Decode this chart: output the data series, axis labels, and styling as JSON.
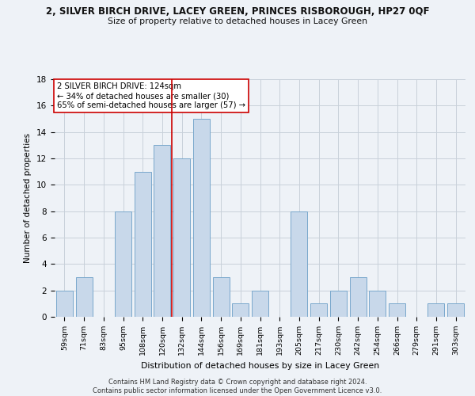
{
  "title_line1": "2, SILVER BIRCH DRIVE, LACEY GREEN, PRINCES RISBOROUGH, HP27 0QF",
  "title_line2": "Size of property relative to detached houses in Lacey Green",
  "xlabel": "Distribution of detached houses by size in Lacey Green",
  "ylabel": "Number of detached properties",
  "categories": [
    "59sqm",
    "71sqm",
    "83sqm",
    "95sqm",
    "108sqm",
    "120sqm",
    "132sqm",
    "144sqm",
    "156sqm",
    "169sqm",
    "181sqm",
    "193sqm",
    "205sqm",
    "217sqm",
    "230sqm",
    "242sqm",
    "254sqm",
    "266sqm",
    "279sqm",
    "291sqm",
    "303sqm"
  ],
  "values": [
    2,
    3,
    0,
    8,
    11,
    13,
    12,
    15,
    3,
    1,
    2,
    0,
    8,
    1,
    2,
    3,
    2,
    1,
    0,
    1,
    1
  ],
  "bar_color": "#c8d8ea",
  "bar_edge_color": "#7aa8cc",
  "vline_x_index": 5.5,
  "vline_color": "#cc0000",
  "annotation_text": "2 SILVER BIRCH DRIVE: 124sqm\n← 34% of detached houses are smaller (30)\n65% of semi-detached houses are larger (57) →",
  "annotation_box_color": "#ffffff",
  "annotation_box_edge_color": "#cc0000",
  "ylim": [
    0,
    18
  ],
  "yticks": [
    0,
    2,
    4,
    6,
    8,
    10,
    12,
    14,
    16,
    18
  ],
  "footer_line1": "Contains HM Land Registry data © Crown copyright and database right 2024.",
  "footer_line2": "Contains public sector information licensed under the Open Government Licence v3.0.",
  "background_color": "#eef2f7",
  "grid_color": "#c8d0da"
}
